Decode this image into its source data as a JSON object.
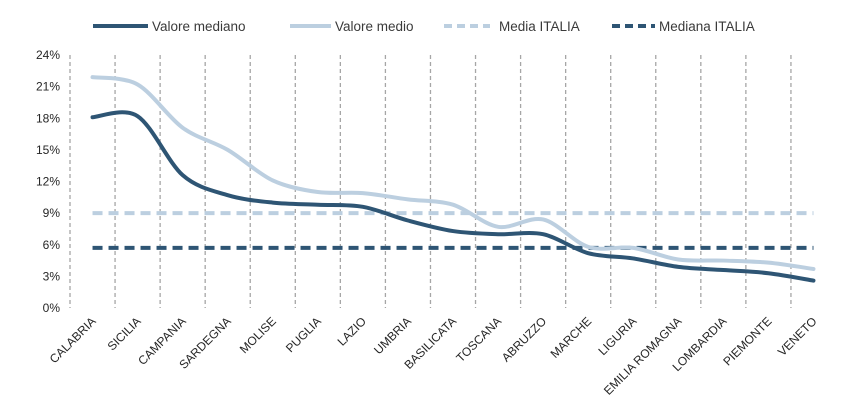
{
  "chart_data": {
    "type": "line",
    "title": "",
    "xlabel": "",
    "ylabel": "",
    "ylim": [
      0,
      24
    ],
    "y_ticks": [
      "0%",
      "3%",
      "6%",
      "9%",
      "12%",
      "15%",
      "18%",
      "21%",
      "24%"
    ],
    "y_tick_values": [
      0,
      3,
      6,
      9,
      12,
      15,
      18,
      21,
      24
    ],
    "y_unit": "%",
    "grid": "vertical dashed",
    "legend_position": "top",
    "categories": [
      "CALABRIA",
      "SICILIA",
      "CAMPANIA",
      "SARDEGNA",
      "MOLISE",
      "PUGLIA",
      "LAZIO",
      "UMBRIA",
      "BASILICATA",
      "TOSCANA",
      "ABRUZZO",
      "MARCHE",
      "LIGURIA",
      "EMILIA ROMAGNA",
      "LOMBARDIA",
      "PIEMONTE",
      "VENETO"
    ],
    "series": [
      {
        "name": "Valore mediano",
        "style": "solid",
        "color": "#2E5574",
        "values": [
          18.1,
          18.2,
          12.6,
          10.7,
          10.0,
          9.8,
          9.6,
          8.3,
          7.3,
          7.0,
          7.0,
          5.2,
          4.7,
          3.9,
          3.6,
          3.3,
          2.6
        ]
      },
      {
        "name": "Valore medio",
        "style": "solid",
        "color": "#BCCFE0",
        "values": [
          21.9,
          21.2,
          17.1,
          15.0,
          12.1,
          11.0,
          10.9,
          10.3,
          9.8,
          7.7,
          8.4,
          5.8,
          5.7,
          4.6,
          4.5,
          4.3,
          3.7
        ]
      },
      {
        "name": "Media ITALIA",
        "style": "dashed",
        "color": "#BCCFE0",
        "values": [
          9.0,
          9.0,
          9.0,
          9.0,
          9.0,
          9.0,
          9.0,
          9.0,
          9.0,
          9.0,
          9.0,
          9.0,
          9.0,
          9.0,
          9.0,
          9.0,
          9.0
        ]
      },
      {
        "name": "Mediana ITALIA",
        "style": "dashed",
        "color": "#2E5574",
        "values": [
          5.7,
          5.7,
          5.7,
          5.7,
          5.7,
          5.7,
          5.7,
          5.7,
          5.7,
          5.7,
          5.7,
          5.7,
          5.7,
          5.7,
          5.7,
          5.7,
          5.7
        ]
      }
    ]
  }
}
